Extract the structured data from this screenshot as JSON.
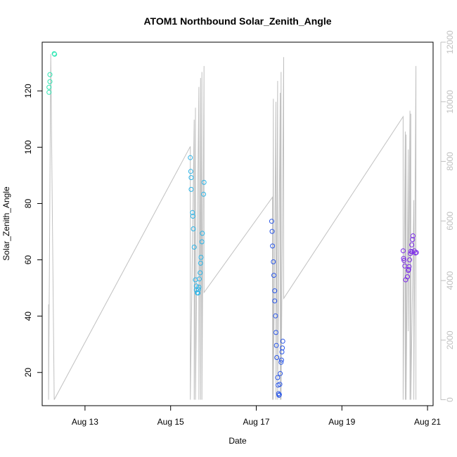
{
  "chart_data": {
    "type": "scatter",
    "title": "ATOM1 Northbound Solar_Zenith_Angle",
    "xlabel": "Date",
    "ylabel": "Solar_Zenith_Angle",
    "x_axis": {
      "unit": "day of August",
      "range": [
        12.0,
        21.13
      ],
      "ticks": [
        {
          "value": 13,
          "label": "Aug 13"
        },
        {
          "value": 15,
          "label": "Aug 15"
        },
        {
          "value": 17,
          "label": "Aug 17"
        },
        {
          "value": 19,
          "label": "Aug 19"
        },
        {
          "value": 21,
          "label": "Aug 21"
        }
      ]
    },
    "y_left": {
      "range": [
        8.2,
        137.3
      ],
      "ticks": [
        20,
        40,
        60,
        80,
        100,
        120
      ],
      "tick_labels": [
        "20",
        "40",
        "60",
        "80",
        "100",
        "120"
      ]
    },
    "y_right": {
      "color": "#c0c0c0",
      "range": [
        -200,
        12000
      ],
      "ticks": [
        0,
        2000,
        4000,
        6000,
        8000,
        10000,
        12000
      ],
      "tick_labels": [
        "0",
        "2000",
        "4000",
        "6000",
        "8000",
        "10000",
        "12000"
      ]
    },
    "grid": false,
    "legend": "none",
    "series": [
      {
        "role": "points",
        "axis": "left",
        "marker": "open-circle",
        "groups": [
          {
            "color": "#2fe7b4",
            "points": [
              [
                12.16,
                119.5
              ],
              [
                12.16,
                121.3
              ],
              [
                12.18,
                123.3
              ],
              [
                12.18,
                125.8
              ],
              [
                12.28,
                133.2
              ],
              [
                12.29,
                133.0
              ]
            ]
          },
          {
            "color": "#2ab4e8",
            "points": [
              [
                15.46,
                96.3
              ],
              [
                15.47,
                91.4
              ],
              [
                15.48,
                89.2
              ],
              [
                15.48,
                85.0
              ],
              [
                15.51,
                76.8
              ],
              [
                15.52,
                75.5
              ],
              [
                15.53,
                71.0
              ],
              [
                15.55,
                64.5
              ],
              [
                15.58,
                52.9
              ],
              [
                15.6,
                50.7
              ],
              [
                15.6,
                49.3
              ],
              [
                15.62,
                48.3
              ],
              [
                15.64,
                48.2
              ],
              [
                15.65,
                49.5
              ],
              [
                15.66,
                50.3
              ],
              [
                15.67,
                53.2
              ],
              [
                15.69,
                55.4
              ],
              [
                15.7,
                58.8
              ],
              [
                15.71,
                60.9
              ],
              [
                15.73,
                66.4
              ],
              [
                15.74,
                69.4
              ],
              [
                15.77,
                83.3
              ],
              [
                15.78,
                87.5
              ]
            ]
          },
          {
            "color": "#2a57e8",
            "points": [
              [
                17.36,
                73.7
              ],
              [
                17.37,
                70.1
              ],
              [
                17.38,
                64.9
              ],
              [
                17.4,
                59.3
              ],
              [
                17.41,
                54.5
              ],
              [
                17.43,
                49.0
              ],
              [
                17.43,
                45.4
              ],
              [
                17.45,
                40.1
              ],
              [
                17.46,
                34.2
              ],
              [
                17.47,
                29.6
              ],
              [
                17.48,
                25.3
              ],
              [
                17.5,
                18.2
              ],
              [
                17.51,
                15.5
              ],
              [
                17.52,
                12.5
              ],
              [
                17.53,
                11.9
              ],
              [
                17.54,
                12.1
              ],
              [
                17.55,
                15.8
              ],
              [
                17.56,
                19.6
              ],
              [
                17.58,
                23.6
              ],
              [
                17.59,
                24.4
              ],
              [
                17.6,
                27.3
              ],
              [
                17.61,
                28.7
              ],
              [
                17.62,
                31.1
              ]
            ]
          },
          {
            "color": "#7b2ae8",
            "points": [
              [
                20.43,
                63.2
              ],
              [
                20.44,
                60.5
              ],
              [
                20.45,
                59.8
              ],
              [
                20.47,
                57.8
              ],
              [
                20.49,
                52.9
              ],
              [
                20.53,
                54.0
              ],
              [
                20.55,
                56.2
              ],
              [
                20.56,
                56.6
              ],
              [
                20.57,
                57.6
              ],
              [
                20.58,
                60.0
              ],
              [
                20.6,
                62.2
              ],
              [
                20.61,
                63.0
              ],
              [
                20.63,
                65.3
              ],
              [
                20.64,
                62.8
              ],
              [
                20.65,
                67.2
              ],
              [
                20.66,
                68.5
              ],
              [
                20.69,
                63.2
              ],
              [
                20.72,
                62.4
              ],
              [
                20.74,
                62.6
              ]
            ]
          }
        ]
      },
      {
        "role": "line",
        "axis": "right",
        "color": "#c0c0c0",
        "points": [
          [
            12.15,
            3200
          ],
          [
            12.15,
            0
          ],
          [
            12.2,
            11600
          ],
          [
            12.28,
            0
          ],
          [
            15.46,
            8500
          ],
          [
            15.46,
            0
          ],
          [
            15.55,
            9400
          ],
          [
            15.55,
            0
          ],
          [
            15.58,
            9800
          ],
          [
            15.58,
            0
          ],
          [
            15.66,
            10500
          ],
          [
            15.66,
            0
          ],
          [
            15.7,
            10800
          ],
          [
            15.7,
            0
          ],
          [
            15.73,
            11000
          ],
          [
            15.73,
            0
          ],
          [
            15.78,
            11200
          ],
          [
            15.78,
            3600
          ],
          [
            17.38,
            6800
          ],
          [
            17.38,
            0
          ],
          [
            17.4,
            10100
          ],
          [
            17.4,
            0
          ],
          [
            17.46,
            10000
          ],
          [
            17.46,
            0
          ],
          [
            17.5,
            10700
          ],
          [
            17.5,
            0
          ],
          [
            17.56,
            10300
          ],
          [
            17.56,
            0
          ],
          [
            17.58,
            11000
          ],
          [
            17.58,
            0
          ],
          [
            17.64,
            11500
          ],
          [
            17.64,
            3400
          ],
          [
            20.43,
            9500
          ],
          [
            20.43,
            0
          ],
          [
            20.48,
            9000
          ],
          [
            20.48,
            0
          ],
          [
            20.5,
            8900
          ],
          [
            20.5,
            0
          ],
          [
            20.55,
            8400
          ],
          [
            20.55,
            2300
          ],
          [
            20.59,
            9700
          ],
          [
            20.59,
            0
          ],
          [
            20.61,
            9600
          ],
          [
            20.61,
            0
          ],
          [
            20.68,
            6700
          ],
          [
            20.68,
            0
          ],
          [
            20.73,
            11200
          ],
          [
            20.73,
            0
          ]
        ]
      }
    ]
  }
}
